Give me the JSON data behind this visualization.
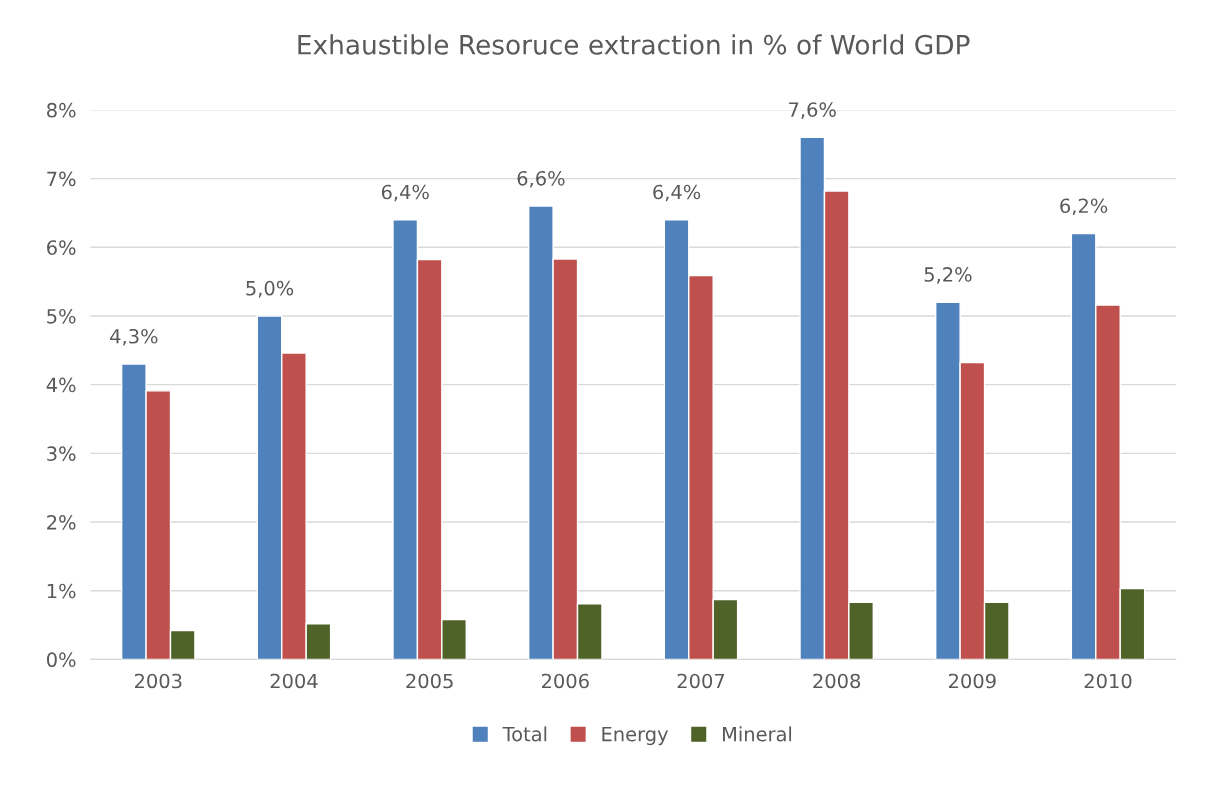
{
  "chart_data": {
    "type": "bar",
    "title": "Exhaustible Resoruce extraction in % of World GDP",
    "categories": [
      "2003",
      "2004",
      "2005",
      "2006",
      "2007",
      "2008",
      "2009",
      "2010"
    ],
    "series": [
      {
        "name": "Total",
        "color": "#4f81bd",
        "values": [
          4.3,
          5.0,
          6.4,
          6.6,
          6.4,
          7.6,
          5.2,
          6.2
        ],
        "value_labels": [
          "4,3%",
          "5,0%",
          "6,4%",
          "6,6%",
          "6,4%",
          "7,6%",
          "5,2%",
          "6,2%"
        ]
      },
      {
        "name": "Energy",
        "color": "#c0504d",
        "values": [
          3.91,
          4.46,
          5.82,
          5.83,
          5.59,
          6.82,
          4.32,
          5.16
        ]
      },
      {
        "name": "Mineral",
        "color": "#4f6228",
        "values": [
          0.42,
          0.52,
          0.58,
          0.81,
          0.87,
          0.83,
          0.83,
          1.03
        ]
      }
    ],
    "ylim": [
      0,
      8
    ],
    "yticks": [
      {
        "value": 0,
        "label": "0%"
      },
      {
        "value": 1,
        "label": "1%"
      },
      {
        "value": 2,
        "label": "2%"
      },
      {
        "value": 3,
        "label": "3%"
      },
      {
        "value": 4,
        "label": "4%"
      },
      {
        "value": 5,
        "label": "5%"
      },
      {
        "value": 6,
        "label": "6%"
      },
      {
        "value": 7,
        "label": "7%"
      },
      {
        "value": 8,
        "label": "8%"
      }
    ],
    "grid": "y",
    "legend": "bottom"
  }
}
